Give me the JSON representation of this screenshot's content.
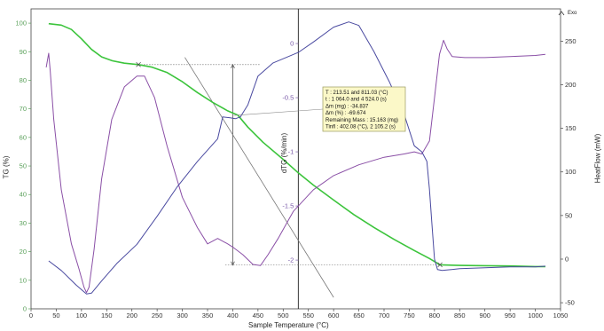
{
  "chart_data": {
    "type": "line",
    "title": "",
    "xlabel": "Sample Temperature (°C)",
    "xlim": [
      0,
      1050
    ],
    "xticks": [
      0,
      50,
      100,
      150,
      200,
      250,
      300,
      350,
      400,
      450,
      500,
      550,
      600,
      650,
      700,
      750,
      800,
      850,
      900,
      950,
      1000,
      1050
    ],
    "axes": {
      "tg": {
        "label": "TG (%)",
        "ylim": [
          0,
          105
        ],
        "ticks": [
          0,
          10,
          20,
          30,
          40,
          50,
          60,
          70,
          80,
          90,
          100
        ],
        "color": "#5aa05a"
      },
      "dtg": {
        "label": "dTG (%/min)",
        "ylim": [
          -2.45,
          0.32
        ],
        "ticks": [
          0,
          -0.5,
          -1,
          -1.5,
          -2
        ],
        "tick_labels": [
          "0",
          "-0.5",
          "-1",
          "-1.5",
          "-2"
        ],
        "color": "#7a5aa8"
      },
      "heatflow": {
        "label": "HeatFlow (mW)",
        "ylim": [
          -57,
          287
        ],
        "ticks": [
          -50,
          0,
          50,
          100,
          150,
          200,
          250
        ],
        "color": "#222"
      }
    },
    "exo_label": "Exo",
    "series": [
      {
        "axis": "tg",
        "color": "#3cc43c",
        "width": 1.6,
        "points": [
          [
            35,
            99.8
          ],
          [
            60,
            99.3
          ],
          [
            80,
            97.8
          ],
          [
            100,
            94.5
          ],
          [
            120,
            90.8
          ],
          [
            140,
            88.2
          ],
          [
            160,
            86.9
          ],
          [
            185,
            86.0
          ],
          [
            213,
            85.5
          ],
          [
            240,
            84.6
          ],
          [
            270,
            82.7
          ],
          [
            300,
            79.5
          ],
          [
            330,
            75.7
          ],
          [
            360,
            72.3
          ],
          [
            390,
            69.3
          ],
          [
            410,
            67.8
          ],
          [
            430,
            63.6
          ],
          [
            460,
            58.3
          ],
          [
            500,
            52.3
          ],
          [
            530,
            47.6
          ],
          [
            560,
            43.3
          ],
          [
            600,
            38.1
          ],
          [
            640,
            33.0
          ],
          [
            680,
            28.5
          ],
          [
            720,
            24.3
          ],
          [
            760,
            20.4
          ],
          [
            790,
            17.6
          ],
          [
            811,
            15.4
          ],
          [
            850,
            15.2
          ],
          [
            900,
            15.1
          ],
          [
            950,
            15.0
          ],
          [
            1000,
            14.8
          ],
          [
            1020,
            14.8
          ]
        ]
      },
      {
        "axis": "dtg",
        "color": "#8a4fa6",
        "width": 1.0,
        "points": [
          [
            30,
            -0.22
          ],
          [
            35,
            -0.09
          ],
          [
            38,
            -0.25
          ],
          [
            45,
            -0.7
          ],
          [
            60,
            -1.35
          ],
          [
            80,
            -1.85
          ],
          [
            95,
            -2.08
          ],
          [
            105,
            -2.25
          ],
          [
            110,
            -2.3
          ],
          [
            115,
            -2.25
          ],
          [
            125,
            -1.9
          ],
          [
            140,
            -1.25
          ],
          [
            160,
            -0.7
          ],
          [
            185,
            -0.4
          ],
          [
            210,
            -0.3
          ],
          [
            225,
            -0.3
          ],
          [
            245,
            -0.5
          ],
          [
            270,
            -0.95
          ],
          [
            300,
            -1.42
          ],
          [
            330,
            -1.7
          ],
          [
            350,
            -1.85
          ],
          [
            370,
            -1.8
          ],
          [
            390,
            -1.85
          ],
          [
            400,
            -1.88
          ],
          [
            420,
            -1.95
          ],
          [
            440,
            -2.04
          ],
          [
            455,
            -2.05
          ],
          [
            470,
            -1.95
          ],
          [
            490,
            -1.8
          ],
          [
            520,
            -1.55
          ],
          [
            560,
            -1.35
          ],
          [
            600,
            -1.22
          ],
          [
            650,
            -1.12
          ],
          [
            700,
            -1.05
          ],
          [
            740,
            -1.02
          ],
          [
            760,
            -1.0
          ],
          [
            775,
            -1.02
          ],
          [
            790,
            -0.9
          ],
          [
            800,
            -0.5
          ],
          [
            810,
            -0.1
          ],
          [
            818,
            0.03
          ],
          [
            825,
            -0.05
          ],
          [
            835,
            -0.12
          ],
          [
            860,
            -0.13
          ],
          [
            900,
            -0.13
          ],
          [
            950,
            -0.12
          ],
          [
            1000,
            -0.11
          ],
          [
            1020,
            -0.1
          ]
        ]
      },
      {
        "axis": "heatflow",
        "color": "#4a4aa0",
        "width": 1.0,
        "points": [
          [
            35,
            -2
          ],
          [
            60,
            -13
          ],
          [
            90,
            -30
          ],
          [
            110,
            -40
          ],
          [
            120,
            -39
          ],
          [
            140,
            -25
          ],
          [
            170,
            -5
          ],
          [
            210,
            17
          ],
          [
            250,
            49
          ],
          [
            290,
            83
          ],
          [
            330,
            112
          ],
          [
            370,
            138
          ],
          [
            380,
            163
          ],
          [
            395,
            162
          ],
          [
            405,
            161
          ],
          [
            415,
            163
          ],
          [
            430,
            177
          ],
          [
            450,
            210
          ],
          [
            480,
            225
          ],
          [
            530,
            237
          ],
          [
            560,
            249
          ],
          [
            600,
            266
          ],
          [
            630,
            272
          ],
          [
            650,
            268
          ],
          [
            680,
            238
          ],
          [
            710,
            204
          ],
          [
            740,
            166
          ],
          [
            760,
            130
          ],
          [
            775,
            123
          ],
          [
            785,
            112
          ],
          [
            790,
            80
          ],
          [
            795,
            40
          ],
          [
            800,
            0
          ],
          [
            806,
            -12
          ],
          [
            815,
            -13
          ],
          [
            850,
            -11
          ],
          [
            900,
            -10
          ],
          [
            950,
            -9
          ],
          [
            1000,
            -9
          ],
          [
            1020,
            -8
          ]
        ]
      }
    ],
    "annotations": {
      "box_lines": [
        "T : 213.51 and 811.03 (°C)",
        "t : 1 064.0 and 4 524.0 (s)",
        "Δm (mg) : -34.837",
        "Δm (%) : -69.674",
        "Remaining Mass : 15.163 (mg)",
        "Tinfl : 402.08 (°C), 2 105.2 (s)"
      ],
      "mass_loss_bar_x": 400,
      "upper_level_tg": 85.5,
      "lower_level_tg": 15.3,
      "upper_level_x_range": [
        213,
        455
      ],
      "lower_level_x_range": [
        385,
        811
      ],
      "tangent_line": {
        "from": [
          305,
          88
        ],
        "to": [
          600,
          4
        ]
      },
      "inflection_point": [
        402,
        67.7
      ],
      "leader_from": [
        402,
        67.7
      ],
      "cursor_x": 530
    }
  }
}
